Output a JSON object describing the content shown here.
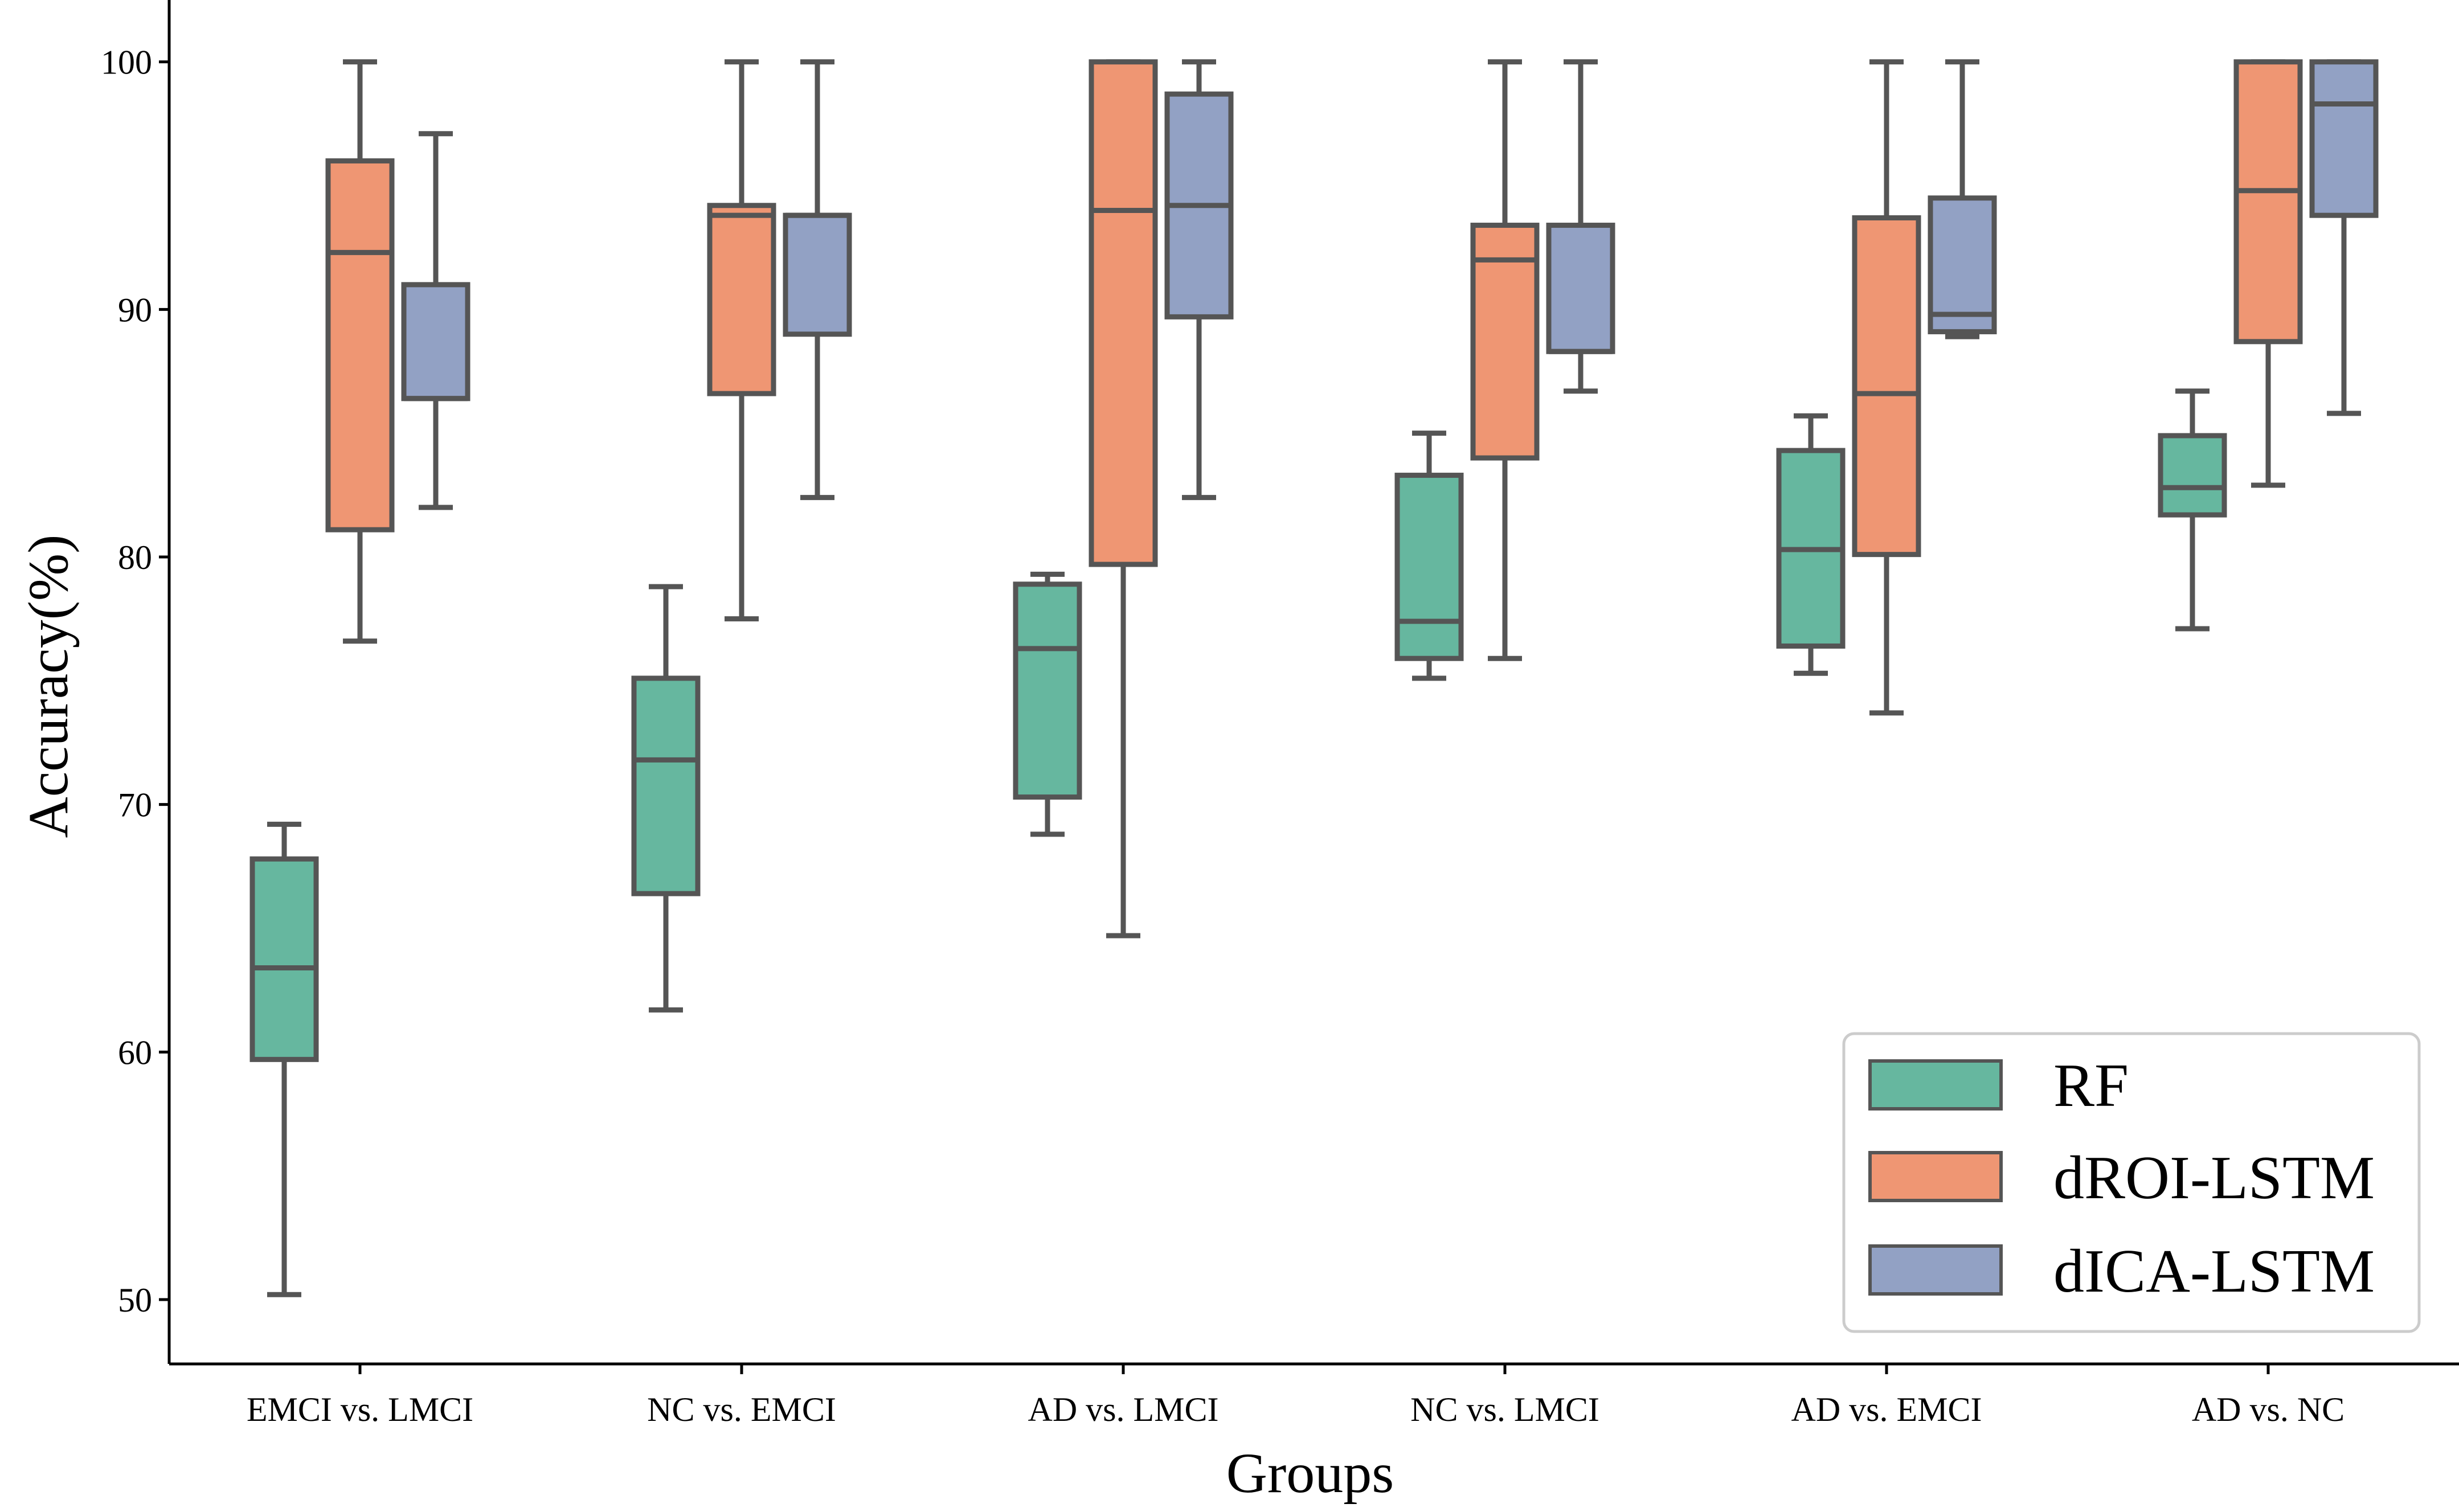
{
  "chart_data": {
    "type": "box",
    "title": "",
    "xlabel": "Groups",
    "ylabel": "Accuracy(%)",
    "ylim": [
      47.4,
      102.5
    ],
    "yticks": [
      50,
      60,
      70,
      80,
      90,
      100
    ],
    "legend_position": "bottom-right",
    "categories": [
      "EMCI vs. LMCI",
      "NC vs. EMCI",
      "AD vs. LMCI",
      "NC vs. LMCI",
      "AD vs. EMCI",
      "AD vs. NC"
    ],
    "series": [
      {
        "name": "RF",
        "color": "#66b79f",
        "boxes": [
          {
            "min": 50.2,
            "q1": 59.7,
            "median": 63.4,
            "q3": 67.8,
            "max": 69.2
          },
          {
            "min": 61.7,
            "q1": 66.4,
            "median": 71.8,
            "q3": 75.1,
            "max": 78.8
          },
          {
            "min": 68.8,
            "q1": 70.3,
            "median": 76.3,
            "q3": 78.9,
            "max": 79.3
          },
          {
            "min": 75.1,
            "q1": 75.9,
            "median": 77.4,
            "q3": 83.3,
            "max": 85.0
          },
          {
            "min": 75.3,
            "q1": 76.4,
            "median": 80.3,
            "q3": 84.3,
            "max": 85.7
          },
          {
            "min": 77.1,
            "q1": 81.7,
            "median": 82.8,
            "q3": 84.9,
            "max": 86.7
          }
        ]
      },
      {
        "name": "dROI-LSTM",
        "color": "#ef9673",
        "boxes": [
          {
            "min": 76.6,
            "q1": 81.1,
            "median": 92.3,
            "q3": 96.0,
            "max": 100.0
          },
          {
            "min": 77.5,
            "q1": 86.6,
            "median": 93.8,
            "q3": 94.2,
            "max": 100.0
          },
          {
            "min": 64.7,
            "q1": 79.7,
            "median": 94.0,
            "q3": 100.0,
            "max": 100.0
          },
          {
            "min": 75.9,
            "q1": 84.0,
            "median": 92.0,
            "q3": 93.4,
            "max": 100.0
          },
          {
            "min": 73.7,
            "q1": 80.1,
            "median": 86.6,
            "q3": 93.7,
            "max": 100.0
          },
          {
            "min": 82.9,
            "q1": 88.7,
            "median": 94.8,
            "q3": 100.0,
            "max": 100.0
          }
        ]
      },
      {
        "name": "dICA-LSTM",
        "color": "#92a1c4",
        "boxes": [
          {
            "min": 82.0,
            "q1": 86.4,
            "median": 86.4,
            "q3": 91.0,
            "max": 97.1
          },
          {
            "min": 82.4,
            "q1": 89.0,
            "median": 93.8,
            "q3": 93.8,
            "max": 100.0
          },
          {
            "min": 82.4,
            "q1": 89.7,
            "median": 94.2,
            "q3": 98.7,
            "max": 100.0
          },
          {
            "min": 86.7,
            "q1": 88.3,
            "median": 88.3,
            "q3": 93.4,
            "max": 100.0
          },
          {
            "min": 88.9,
            "q1": 89.1,
            "median": 89.8,
            "q3": 94.5,
            "max": 100.0
          },
          {
            "min": 85.8,
            "q1": 93.8,
            "median": 98.3,
            "q3": 100.0,
            "max": 100.0
          }
        ]
      }
    ]
  }
}
